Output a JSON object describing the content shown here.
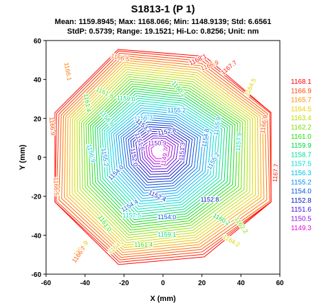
{
  "chart_data": {
    "type": "contour",
    "title": "S1813-1 (P 1)",
    "stats_line1": "Mean: 1159.8945; Max: 1168.066; Min: 1148.9139; Std: 6.6561",
    "stats_line2": "StdP: 0.5739; Range: 19.1521; Hi-Lo: 0.8256; Unit: nm",
    "xlabel": "X (mm)",
    "ylabel": "Y (mm)",
    "xlim": [
      -60,
      60
    ],
    "ylim": [
      -60,
      60
    ],
    "x_ticks": [
      "-60",
      "-40",
      "-20",
      "0",
      "20",
      "40",
      "60"
    ],
    "y_ticks": [
      "60",
      "40",
      "20",
      "0",
      "-20",
      "-40",
      "-60"
    ],
    "center_value": 1148.9139,
    "edge_value": 1168.066,
    "wafer_radius_mm": 60,
    "legend": [
      {
        "label": "1168.1",
        "color": "#ff0000"
      },
      {
        "label": "1166.9",
        "color": "#ff4800"
      },
      {
        "label": "1165.7",
        "color": "#ff9000"
      },
      {
        "label": "1164.5",
        "color": "#e8d000"
      },
      {
        "label": "1163.4",
        "color": "#b8e000"
      },
      {
        "label": "1162.2",
        "color": "#70e000"
      },
      {
        "label": "1161.0",
        "color": "#20e000"
      },
      {
        "label": "1159.9",
        "color": "#00d840"
      },
      {
        "label": "1158.7",
        "color": "#00e090"
      },
      {
        "label": "1157.5",
        "color": "#00e0d0"
      },
      {
        "label": "1156.3",
        "color": "#00c0f0"
      },
      {
        "label": "1155.2",
        "color": "#0090f0"
      },
      {
        "label": "1154.0",
        "color": "#0050e0"
      },
      {
        "label": "1152.8",
        "color": "#0018c8"
      },
      {
        "label": "1151.6",
        "color": "#4010d8"
      },
      {
        "label": "1150.5",
        "color": "#9010e0"
      },
      {
        "label": "1149.3",
        "color": "#e010e0"
      }
    ],
    "contour_labels": [
      {
        "text": "1168.1",
        "x": 18,
        "y": 50,
        "angle": -25
      },
      {
        "text": "1167.7",
        "x": 34,
        "y": 46,
        "angle": -40
      },
      {
        "text": "1166.9",
        "x": 24,
        "y": 47,
        "angle": -20
      },
      {
        "text": "1166.5",
        "x": -22,
        "y": 51,
        "angle": 12
      },
      {
        "text": "1166.1",
        "x": -49,
        "y": 44,
        "angle": 80
      },
      {
        "text": "1166.9",
        "x": -57,
        "y": 16,
        "angle": 85
      },
      {
        "text": "1166.5",
        "x": -55,
        "y": -15,
        "angle": 88
      },
      {
        "text": "1166.9",
        "x": 52,
        "y": 17,
        "angle": -80
      },
      {
        "text": "1167.7",
        "x": 58,
        "y": -8,
        "angle": -85
      },
      {
        "text": "1164.5",
        "x": 45,
        "y": 36,
        "angle": -65
      },
      {
        "text": "1161.4",
        "x": -39,
        "y": 28,
        "angle": 80
      },
      {
        "text": "1161.8",
        "x": -30,
        "y": 33,
        "angle": 25
      },
      {
        "text": "1160.2",
        "x": 8,
        "y": 35,
        "angle": 50
      },
      {
        "text": "1159.0",
        "x": -19,
        "y": 30,
        "angle": 5
      },
      {
        "text": "1158.6",
        "x": -29,
        "y": 20,
        "angle": 50
      },
      {
        "text": "1156.3",
        "x": -10,
        "y": 20,
        "angle": -5
      },
      {
        "text": "1155.2",
        "x": 7,
        "y": 24,
        "angle": 0
      },
      {
        "text": "1153.2",
        "x": -10,
        "y": 16,
        "angle": 40
      },
      {
        "text": "1152.8",
        "x": 2,
        "y": 13,
        "angle": -10
      },
      {
        "text": "1150.9",
        "x": -3,
        "y": 7,
        "angle": 0
      },
      {
        "text": "1151.6",
        "x": -12,
        "y": 8,
        "angle": 70
      },
      {
        "text": "1149.7",
        "x": 1,
        "y": 0,
        "angle": -80
      },
      {
        "text": "1151.3",
        "x": 10,
        "y": 3,
        "angle": -85
      },
      {
        "text": "1152.0",
        "x": -15,
        "y": 0,
        "angle": 80
      },
      {
        "text": "1154.8",
        "x": 22,
        "y": 10,
        "angle": -80
      },
      {
        "text": "1155.2",
        "x": 26,
        "y": -2,
        "angle": -60
      },
      {
        "text": "1155.9",
        "x": 28,
        "y": 16,
        "angle": -80
      },
      {
        "text": "1157.9",
        "x": 39,
        "y": 8,
        "angle": -85
      },
      {
        "text": "1155.2",
        "x": -30,
        "y": 0,
        "angle": 80
      },
      {
        "text": "1156.9",
        "x": -37,
        "y": 2,
        "angle": 75
      },
      {
        "text": "1154.0",
        "x": -24,
        "y": -8,
        "angle": -45
      },
      {
        "text": "1154.4",
        "x": -17,
        "y": -25,
        "angle": -30
      },
      {
        "text": "1152.4",
        "x": -3,
        "y": -20,
        "angle": 25
      },
      {
        "text": "1152.8",
        "x": 24,
        "y": -22,
        "angle": 0
      },
      {
        "text": "1154.0",
        "x": 2,
        "y": -31,
        "angle": 0
      },
      {
        "text": "1157.5",
        "x": -16,
        "y": -30,
        "angle": 0
      },
      {
        "text": "1160.2",
        "x": 30,
        "y": -32,
        "angle": 30
      },
      {
        "text": "1161.0",
        "x": -30,
        "y": -34,
        "angle": 55
      },
      {
        "text": "1159.1",
        "x": 2,
        "y": -40,
        "angle": 0
      },
      {
        "text": "1161.4",
        "x": -10,
        "y": -45,
        "angle": 0
      },
      {
        "text": "1164.2",
        "x": -24,
        "y": -46,
        "angle": -40
      },
      {
        "text": "1164.9",
        "x": -42,
        "y": -47,
        "angle": -50
      },
      {
        "text": "1162.2",
        "x": 40,
        "y": -35,
        "angle": 55
      },
      {
        "text": "1166.7",
        "x": -43,
        "y": -50,
        "angle": -55
      },
      {
        "text": "1164.2",
        "x": 35,
        "y": -43,
        "angle": 30
      }
    ]
  }
}
